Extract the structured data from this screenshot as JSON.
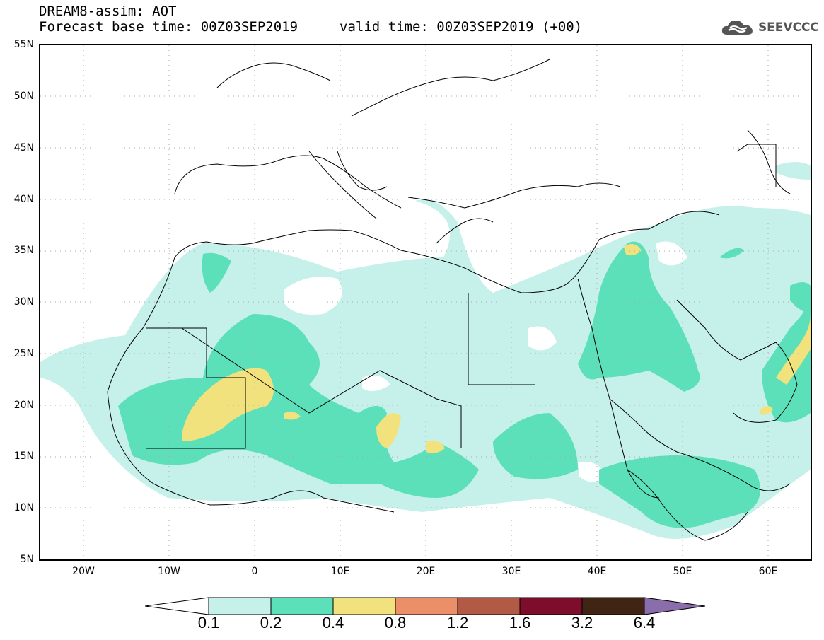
{
  "header": {
    "title": "DREAM8-assim: AOT",
    "base_time": "Forecast base time: 00Z03SEP2019",
    "valid_time": "valid time: 00Z03SEP2019 (+00)",
    "logo_text": "SEEVCCC",
    "logo_icon": "cloud-icon"
  },
  "map": {
    "variable": "AOT",
    "lon_range": [
      -25,
      65
    ],
    "lat_range": [
      5,
      55
    ],
    "lat_labels": [
      "55N",
      "50N",
      "45N",
      "40N",
      "35N",
      "30N",
      "25N",
      "20N",
      "15N",
      "10N",
      "5N"
    ],
    "lon_labels": [
      "20W",
      "10W",
      "0",
      "10E",
      "20E",
      "30E",
      "40E",
      "50E",
      "60E"
    ]
  },
  "colorbar": {
    "levels": [
      "0.1",
      "0.2",
      "0.4",
      "0.8",
      "1.2",
      "1.6",
      "3.2",
      "6.4"
    ],
    "colors": [
      "#c5f1ea",
      "#5ce0ba",
      "#f2e27e",
      "#ea8f68",
      "#b35a46",
      "#7e0d2c",
      "#402515",
      "#8a6eab"
    ],
    "low_end_color": "#ffffff"
  }
}
